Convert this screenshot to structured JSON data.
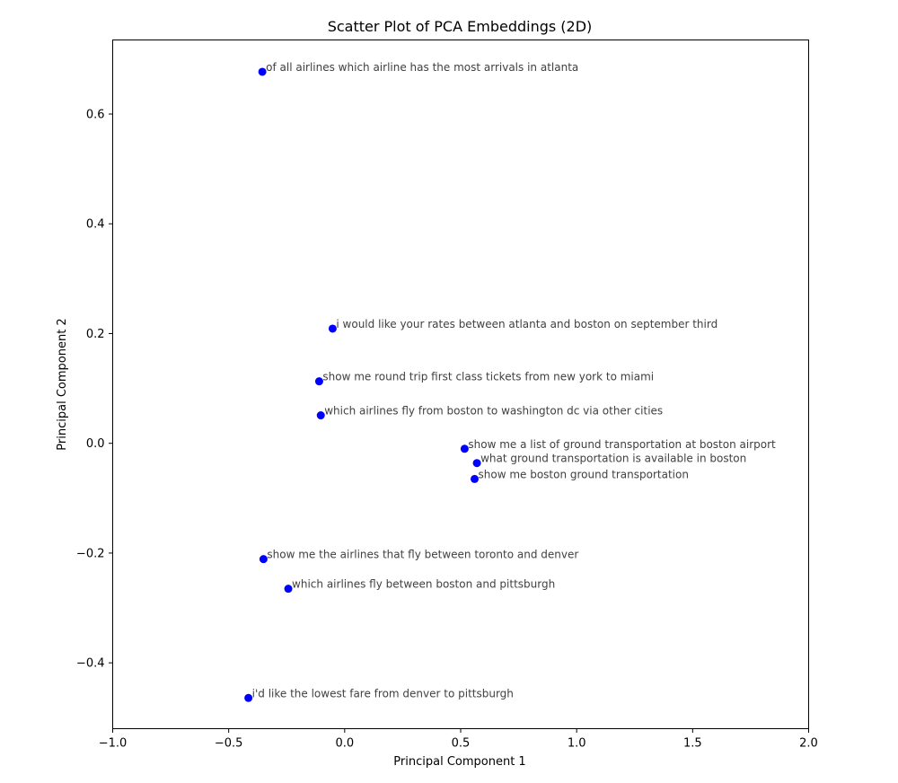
{
  "chart_data": {
    "type": "scatter",
    "title": "Scatter Plot of PCA Embeddings (2D)",
    "xlabel": "Principal Component 1",
    "ylabel": "Principal Component 2",
    "xlim": [
      -1.0,
      2.0
    ],
    "ylim": [
      -0.52,
      0.735
    ],
    "xticks": [
      -1.0,
      -0.5,
      0.0,
      0.5,
      1.0,
      1.5,
      2.0
    ],
    "xtick_labels": [
      "−1.0",
      "−0.5",
      "0.0",
      "0.5",
      "1.0",
      "1.5",
      "2.0"
    ],
    "yticks": [
      -0.4,
      -0.2,
      0.0,
      0.2,
      0.4,
      0.6
    ],
    "ytick_labels": [
      "−0.4",
      "−0.2",
      "0.0",
      "0.2",
      "0.4",
      "0.6"
    ],
    "grid": false,
    "marker_color": "#0000ff",
    "label_color": "#404040",
    "points": [
      {
        "x": -0.355,
        "y": 0.677,
        "label": "of all airlines which airline has the most arrivals in atlanta"
      },
      {
        "x": -0.052,
        "y": 0.209,
        "label": "i would like your rates between atlanta and boston on september third"
      },
      {
        "x": -0.11,
        "y": 0.113,
        "label": "show me round trip first class tickets from new york to miami"
      },
      {
        "x": -0.103,
        "y": 0.051,
        "label": "which airlines fly from boston to washington dc via other cities"
      },
      {
        "x": 0.517,
        "y": -0.01,
        "label": "show me a list of ground transportation at boston airport"
      },
      {
        "x": 0.57,
        "y": -0.036,
        "label": "what ground transportation is available in boston"
      },
      {
        "x": 0.56,
        "y": -0.065,
        "label": "show me boston ground transportation"
      },
      {
        "x": -0.35,
        "y": -0.211,
        "label": "show me the airlines that fly between toronto and denver"
      },
      {
        "x": -0.243,
        "y": -0.265,
        "label": "which airlines fly between boston and pittsburgh"
      },
      {
        "x": -0.415,
        "y": -0.464,
        "label": "i'd like the lowest fare from denver to pittsburgh"
      }
    ]
  }
}
